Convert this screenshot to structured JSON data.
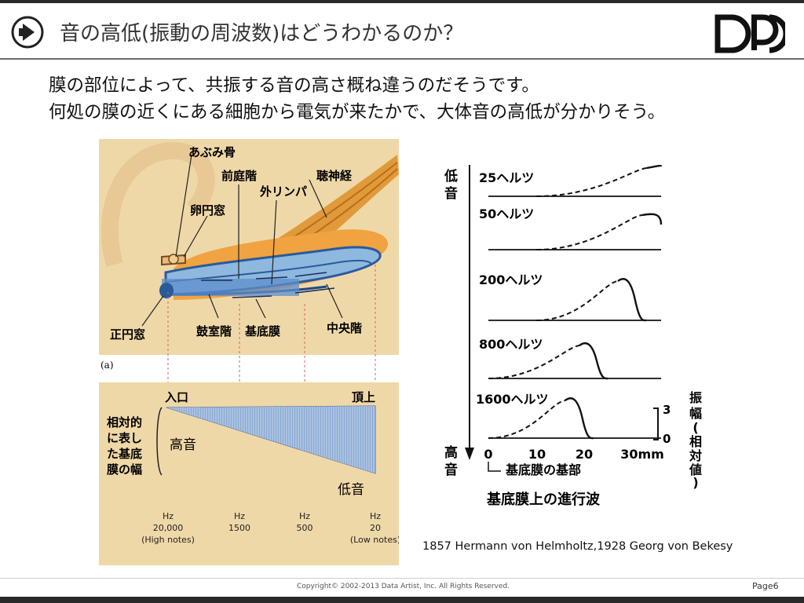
{
  "header": {
    "title": "音の高低(振動の周波数)はどうわかるのか？",
    "logo_icon": "dp-logo-icon",
    "bullet_icon": "circle-arrow-icon"
  },
  "intro": {
    "line1": "膜の部位によって、共振する音の高さ概ね違うのだそうです。",
    "line2": "何処の膜の近くにある細胞から電気が来たかで、大体音の高低が分かりそう。"
  },
  "cochlea": {
    "labels": {
      "stapes": "あぶみ骨",
      "vestibuli": "前庭階",
      "nerve": "聴神経",
      "perilymph": "外リンパ",
      "oval": "卵円窓",
      "round": "正円窓",
      "tympani": "鼓室階",
      "basilar": "基底膜",
      "media": "中央階"
    },
    "panel_tag": "(a)",
    "entrance": "入口",
    "apex": "頂上",
    "width_label": [
      "相対的",
      "に表し",
      "た基底",
      "膜の幅"
    ],
    "high_label": "高音",
    "low_label": "低音",
    "freq_marks": [
      {
        "unit": "Hz",
        "value": "20,000",
        "note": "(High notes)"
      },
      {
        "unit": "Hz",
        "value": "1500",
        "note": ""
      },
      {
        "unit": "Hz",
        "value": "500",
        "note": ""
      },
      {
        "unit": "Hz",
        "value": "20",
        "note": "(Low notes)"
      }
    ]
  },
  "travel_wave": {
    "low_label": [
      "低",
      "音"
    ],
    "high_label": [
      "高",
      "音"
    ],
    "curves": [
      {
        "label": "25ヘルツ",
        "peak_mm": 35
      },
      {
        "label": "50ヘルツ",
        "peak_mm": 34
      },
      {
        "label": "200ヘルツ",
        "peak_mm": 29
      },
      {
        "label": "800ヘルツ",
        "peak_mm": 21
      },
      {
        "label": "1600ヘルツ",
        "peak_mm": 18
      }
    ],
    "x_ticks": [
      "0",
      "10",
      "20",
      "30mm"
    ],
    "x_origin_label": "基底膜の基部",
    "amp_ticks": [
      "3",
      "0"
    ],
    "amp_label": [
      "振",
      "幅",
      "(",
      "相",
      "対",
      "値",
      ")"
    ],
    "caption": "基底膜上の進行波"
  },
  "credit": "1857 Hermann von Helmholtz,1928 Georg von Bekesy",
  "footer": {
    "copyright": "Copyright© 2002-2013 Data Artist, Inc.  All Rights Reserved.",
    "page": "Page6"
  }
}
